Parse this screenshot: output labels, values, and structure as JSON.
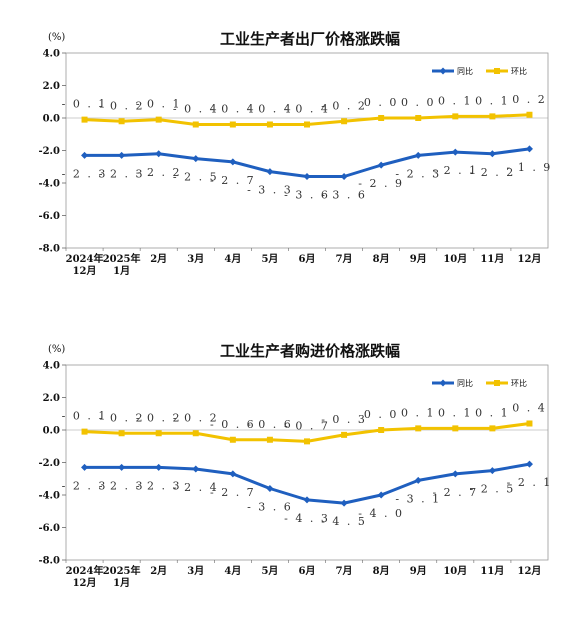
{
  "chart_data": [
    {
      "type": "line",
      "title": "工业生产者出厂价格涨跌幅",
      "ylabel": "(%)",
      "ylim": [
        -8.0,
        4.0
      ],
      "yticks": [
        "4.0",
        "2.0",
        "0.0",
        "-2.0",
        "-4.0",
        "-6.0",
        "-8.0"
      ],
      "categories": [
        [
          "2024年",
          "12月"
        ],
        [
          "2025年",
          "1月"
        ],
        [
          "2月"
        ],
        [
          "3月"
        ],
        [
          "4月"
        ],
        [
          "5月"
        ],
        [
          "6月"
        ],
        [
          "7月"
        ],
        [
          "8月"
        ],
        [
          "9月"
        ],
        [
          "10月"
        ],
        [
          "11月"
        ],
        [
          "12月"
        ]
      ],
      "legend_position": "top-right",
      "series": [
        {
          "name": "同比",
          "color": "#1f5fbf",
          "values": [
            -2.3,
            -2.3,
            -2.2,
            -2.5,
            -2.7,
            -3.3,
            -3.6,
            -3.6,
            -2.9,
            -2.3,
            -2.1,
            -2.2,
            -1.9
          ],
          "labels": [
            "-2.3",
            "-2.3",
            "-2.2",
            "-2.5",
            "-2.7",
            "-3.3",
            "-3.6",
            "-3.6",
            "-2.9",
            "-2.3",
            "-2.1",
            "-2.2",
            "-1.9"
          ]
        },
        {
          "name": "环比",
          "color": "#f2c200",
          "values": [
            -0.1,
            -0.2,
            -0.1,
            -0.4,
            -0.4,
            -0.4,
            -0.4,
            -0.2,
            0.0,
            0.0,
            0.1,
            0.1,
            0.2
          ],
          "labels": [
            "-0.1",
            "-0.2",
            "-0.1",
            "-0.4",
            "-0.4",
            "-0.4",
            "-0.4",
            "-0.2",
            "0.0",
            "0.0",
            "0.1",
            "0.1",
            "0.2"
          ]
        }
      ]
    },
    {
      "type": "line",
      "title": "工业生产者购进价格涨跌幅",
      "ylabel": "(%)",
      "ylim": [
        -8.0,
        4.0
      ],
      "yticks": [
        "4.0",
        "2.0",
        "0.0",
        "-2.0",
        "-4.0",
        "-6.0",
        "-8.0"
      ],
      "categories": [
        [
          "2024年",
          "12月"
        ],
        [
          "2025年",
          "1月"
        ],
        [
          "2月"
        ],
        [
          "3月"
        ],
        [
          "4月"
        ],
        [
          "5月"
        ],
        [
          "6月"
        ],
        [
          "7月"
        ],
        [
          "8月"
        ],
        [
          "9月"
        ],
        [
          "10月"
        ],
        [
          "11月"
        ],
        [
          "12月"
        ]
      ],
      "legend_position": "top-right",
      "series": [
        {
          "name": "同比",
          "color": "#1f5fbf",
          "values": [
            -2.3,
            -2.3,
            -2.3,
            -2.4,
            -2.7,
            -3.6,
            -4.3,
            -4.5,
            -4.0,
            -3.1,
            -2.7,
            -2.5,
            -2.1
          ],
          "labels": [
            "-2.3",
            "-2.3",
            "-2.3",
            "-2.4",
            "-2.7",
            "-3.6",
            "-4.3",
            "-4.5",
            "-4.0",
            "-3.1",
            "-2.7",
            "-2.5",
            "-2.1"
          ]
        },
        {
          "name": "环比",
          "color": "#f2c200",
          "values": [
            -0.1,
            -0.2,
            -0.2,
            -0.2,
            -0.6,
            -0.6,
            -0.7,
            -0.3,
            0.0,
            0.1,
            0.1,
            0.1,
            0.4
          ],
          "labels": [
            "-0.1",
            "-0.2",
            "-0.2",
            "-0.2",
            "-0.6",
            "-0.6",
            "-0.7",
            "-0.3",
            "0.0",
            "0.1",
            "0.1",
            "0.1",
            "0.4"
          ]
        }
      ]
    }
  ]
}
